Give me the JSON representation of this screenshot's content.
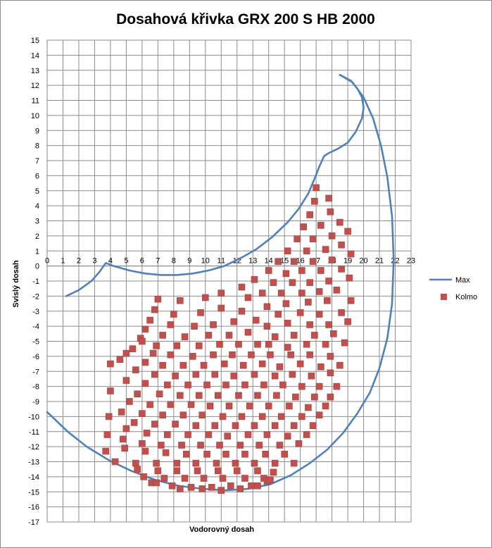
{
  "chart_data": {
    "type": "scatter",
    "title": "Dosahová křivka GRX 200 S HB 2000",
    "xlabel": "Vodorovný dosah",
    "ylabel": "Svislý dosah",
    "xlim": [
      0,
      23
    ],
    "ylim": [
      -17,
      15
    ],
    "grid": true,
    "legend_position": "right",
    "x_ticks": [
      "0",
      "1",
      "2",
      "3",
      "4",
      "5",
      "6",
      "7",
      "8",
      "9",
      "10",
      "11",
      "12",
      "13",
      "14",
      "15",
      "16",
      "17",
      "18",
      "19",
      "20",
      "21",
      "22",
      "23"
    ],
    "y_ticks": [
      "15",
      "14",
      "13",
      "12",
      "11",
      "10",
      "9",
      "8",
      "7",
      "6",
      "5",
      "4",
      "3",
      "2",
      "1",
      "0",
      "-1",
      "-2",
      "-3",
      "-4",
      "-5",
      "-6",
      "-7",
      "-8",
      "-9",
      "-10",
      "-11",
      "-12",
      "-13",
      "-14",
      "-15",
      "-16",
      "-17"
    ],
    "series": [
      {
        "name": "Max",
        "kind": "line",
        "color": "#4f81bd",
        "x": [
          1.2,
          2.0,
          2.8,
          3.3,
          3.7,
          4.2,
          5.2,
          6.2,
          7.2,
          8.2,
          9.2,
          10.2,
          11.2,
          12.2,
          13.2,
          14.2,
          15.2,
          15.9,
          16.5,
          16.9,
          17.2,
          17.5,
          17.8,
          18.4,
          19.0,
          19.5,
          19.9,
          20.0,
          19.9,
          19.6,
          19.2,
          18.5,
          19.3,
          20.0,
          20.6,
          21.1,
          21.5,
          21.8,
          21.9,
          21.8,
          21.5,
          21.0,
          20.4,
          19.6,
          18.7,
          17.7,
          16.6,
          15.4,
          14.1,
          12.7,
          11.3,
          9.8,
          8.3,
          6.8,
          5.3,
          3.9,
          2.5,
          1.3,
          0.4,
          0.0
        ],
        "y": [
          -2.0,
          -1.6,
          -1.0,
          -0.4,
          0.2,
          0.0,
          -0.3,
          -0.5,
          -0.6,
          -0.6,
          -0.5,
          -0.3,
          0.0,
          0.5,
          1.1,
          1.9,
          2.9,
          3.8,
          4.8,
          5.8,
          6.6,
          7.3,
          7.5,
          7.8,
          8.2,
          8.9,
          9.8,
          10.5,
          11.2,
          11.8,
          12.3,
          12.7,
          12.2,
          11.2,
          9.8,
          8.0,
          5.9,
          3.3,
          0.4,
          -2.5,
          -4.8,
          -6.8,
          -8.4,
          -9.8,
          -11.1,
          -12.2,
          -13.1,
          -13.9,
          -14.5,
          -14.8,
          -14.9,
          -14.8,
          -14.6,
          -14.2,
          -13.6,
          -12.9,
          -12.0,
          -11.0,
          -10.1,
          -9.7
        ]
      },
      {
        "name": "Kolmo",
        "kind": "scatter",
        "color": "#c0504d",
        "points": [
          [
            17.0,
            5.2
          ],
          [
            17.8,
            4.5
          ],
          [
            16.9,
            4.3
          ],
          [
            16.6,
            3.4
          ],
          [
            17.9,
            3.6
          ],
          [
            16.2,
            2.6
          ],
          [
            17.3,
            2.7
          ],
          [
            18.5,
            2.9
          ],
          [
            15.8,
            1.8
          ],
          [
            16.8,
            1.8
          ],
          [
            18.0,
            2.0
          ],
          [
            19.0,
            2.3
          ],
          [
            15.2,
            1.0
          ],
          [
            16.4,
            1.0
          ],
          [
            17.6,
            1.1
          ],
          [
            18.6,
            1.4
          ],
          [
            14.6,
            0.3
          ],
          [
            15.6,
            0.3
          ],
          [
            16.8,
            0.3
          ],
          [
            18.0,
            0.4
          ],
          [
            19.2,
            0.8
          ],
          [
            14.0,
            -0.3
          ],
          [
            15.1,
            -0.5
          ],
          [
            16.1,
            -0.3
          ],
          [
            17.3,
            -0.3
          ],
          [
            18.6,
            -0.2
          ],
          [
            13.1,
            -0.9
          ],
          [
            14.3,
            -1.1
          ],
          [
            15.5,
            -1.1
          ],
          [
            16.6,
            -1.1
          ],
          [
            17.8,
            -1.0
          ],
          [
            19.1,
            -0.8
          ],
          [
            12.3,
            -1.4
          ],
          [
            13.6,
            -1.8
          ],
          [
            14.8,
            -1.8
          ],
          [
            16.1,
            -1.8
          ],
          [
            17.2,
            -1.7
          ],
          [
            18.3,
            -1.6
          ],
          [
            11.0,
            -1.8
          ],
          [
            12.7,
            -2.1
          ],
          [
            13.9,
            -2.7
          ],
          [
            15.1,
            -2.5
          ],
          [
            16.5,
            -2.4
          ],
          [
            17.7,
            -2.3
          ],
          [
            19.2,
            -2.3
          ],
          [
            7.0,
            -2.2
          ],
          [
            8.4,
            -2.3
          ],
          [
            10.0,
            -2.1
          ],
          [
            6.8,
            -2.9
          ],
          [
            8.0,
            -3.2
          ],
          [
            9.7,
            -3.1
          ],
          [
            11.0,
            -2.8
          ],
          [
            12.3,
            -3.0
          ],
          [
            14.6,
            -3.2
          ],
          [
            16.0,
            -3.1
          ],
          [
            17.2,
            -3.2
          ],
          [
            18.6,
            -3.1
          ],
          [
            6.5,
            -3.6
          ],
          [
            7.8,
            -3.9
          ],
          [
            9.3,
            -4.0
          ],
          [
            10.5,
            -3.9
          ],
          [
            11.8,
            -3.7
          ],
          [
            13.2,
            -3.6
          ],
          [
            13.9,
            -4.0
          ],
          [
            15.2,
            -3.8
          ],
          [
            16.6,
            -3.9
          ],
          [
            17.8,
            -3.9
          ],
          [
            19.0,
            -3.7
          ],
          [
            6.2,
            -4.2
          ],
          [
            7.3,
            -4.6
          ],
          [
            8.7,
            -4.7
          ],
          [
            10.2,
            -4.6
          ],
          [
            11.5,
            -4.6
          ],
          [
            12.7,
            -4.4
          ],
          [
            14.4,
            -4.7
          ],
          [
            15.6,
            -4.6
          ],
          [
            16.9,
            -4.6
          ],
          [
            18.1,
            -4.5
          ],
          [
            5.9,
            -4.8
          ],
          [
            6.0,
            -5.0
          ],
          [
            6.9,
            -5.3
          ],
          [
            8.2,
            -5.3
          ],
          [
            9.6,
            -5.3
          ],
          [
            10.9,
            -5.2
          ],
          [
            12.1,
            -5.2
          ],
          [
            13.3,
            -5.2
          ],
          [
            14.0,
            -5.2
          ],
          [
            15.2,
            -5.4
          ],
          [
            16.4,
            -5.2
          ],
          [
            17.6,
            -5.2
          ],
          [
            18.8,
            -5.1
          ],
          [
            5.4,
            -5.5
          ],
          [
            5.0,
            -5.8
          ],
          [
            6.7,
            -5.8
          ],
          [
            7.8,
            -5.9
          ],
          [
            9.2,
            -6.0
          ],
          [
            10.5,
            -5.9
          ],
          [
            11.7,
            -5.9
          ],
          [
            12.9,
            -5.9
          ],
          [
            14.1,
            -5.9
          ],
          [
            15.4,
            -5.9
          ],
          [
            16.6,
            -5.9
          ],
          [
            17.9,
            -6.0
          ],
          [
            4.6,
            -6.2
          ],
          [
            4.0,
            -6.5
          ],
          [
            6.2,
            -6.4
          ],
          [
            7.3,
            -6.6
          ],
          [
            8.6,
            -6.6
          ],
          [
            9.9,
            -6.6
          ],
          [
            11.2,
            -6.5
          ],
          [
            12.4,
            -6.6
          ],
          [
            13.6,
            -6.5
          ],
          [
            14.7,
            -6.7
          ],
          [
            16.0,
            -6.5
          ],
          [
            17.3,
            -6.7
          ],
          [
            18.5,
            -6.6
          ],
          [
            5.6,
            -6.9
          ],
          [
            6.8,
            -7.2
          ],
          [
            8.1,
            -7.3
          ],
          [
            9.4,
            -7.2
          ],
          [
            10.6,
            -7.2
          ],
          [
            11.8,
            -7.3
          ],
          [
            13.1,
            -7.2
          ],
          [
            14.4,
            -7.3
          ],
          [
            15.5,
            -7.2
          ],
          [
            16.7,
            -7.3
          ],
          [
            17.9,
            -7.1
          ],
          [
            5.0,
            -7.6
          ],
          [
            6.2,
            -7.8
          ],
          [
            7.6,
            -7.9
          ],
          [
            8.9,
            -7.9
          ],
          [
            10.1,
            -7.9
          ],
          [
            11.3,
            -7.9
          ],
          [
            12.5,
            -7.9
          ],
          [
            13.7,
            -7.9
          ],
          [
            14.9,
            -7.9
          ],
          [
            16.1,
            -8.0
          ],
          [
            17.2,
            -8.0
          ],
          [
            18.3,
            -8.0
          ],
          [
            4.0,
            -8.3
          ],
          [
            5.7,
            -8.5
          ],
          [
            7.1,
            -8.5
          ],
          [
            8.4,
            -8.6
          ],
          [
            9.6,
            -8.6
          ],
          [
            10.8,
            -8.6
          ],
          [
            12.1,
            -8.6
          ],
          [
            13.3,
            -8.6
          ],
          [
            14.5,
            -8.6
          ],
          [
            15.7,
            -8.7
          ],
          [
            16.9,
            -8.7
          ],
          [
            17.9,
            -8.7
          ],
          [
            5.2,
            -9.0
          ],
          [
            6.5,
            -9.2
          ],
          [
            7.8,
            -9.2
          ],
          [
            9.1,
            -9.2
          ],
          [
            10.3,
            -9.3
          ],
          [
            11.5,
            -9.3
          ],
          [
            12.8,
            -9.3
          ],
          [
            14.0,
            -9.3
          ],
          [
            15.3,
            -9.3
          ],
          [
            16.5,
            -9.4
          ],
          [
            17.6,
            -9.3
          ],
          [
            4.7,
            -9.7
          ],
          [
            6.0,
            -9.8
          ],
          [
            7.3,
            -9.9
          ],
          [
            8.6,
            -9.9
          ],
          [
            9.8,
            -9.9
          ],
          [
            11.1,
            -10.0
          ],
          [
            12.3,
            -10.0
          ],
          [
            13.6,
            -10.0
          ],
          [
            14.8,
            -10.0
          ],
          [
            16.1,
            -10.0
          ],
          [
            17.2,
            -9.9
          ],
          [
            3.9,
            -10.0
          ],
          [
            5.5,
            -10.4
          ],
          [
            6.8,
            -10.5
          ],
          [
            8.1,
            -10.5
          ],
          [
            9.4,
            -10.6
          ],
          [
            10.6,
            -10.6
          ],
          [
            11.9,
            -10.6
          ],
          [
            13.1,
            -10.6
          ],
          [
            14.4,
            -10.6
          ],
          [
            15.6,
            -10.6
          ],
          [
            16.8,
            -10.6
          ],
          [
            5.0,
            -10.8
          ],
          [
            6.3,
            -11.1
          ],
          [
            7.6,
            -11.2
          ],
          [
            8.9,
            -11.2
          ],
          [
            10.2,
            -11.2
          ],
          [
            11.4,
            -11.3
          ],
          [
            12.7,
            -11.2
          ],
          [
            13.9,
            -11.2
          ],
          [
            15.2,
            -11.3
          ],
          [
            16.4,
            -11.2
          ],
          [
            3.8,
            -11.2
          ],
          [
            4.8,
            -11.5
          ],
          [
            6.0,
            -11.8
          ],
          [
            7.2,
            -11.9
          ],
          [
            8.5,
            -11.9
          ],
          [
            9.7,
            -11.9
          ],
          [
            10.9,
            -11.9
          ],
          [
            12.2,
            -11.9
          ],
          [
            13.4,
            -11.9
          ],
          [
            14.7,
            -11.9
          ],
          [
            15.9,
            -11.8
          ],
          [
            4.9,
            -12.1
          ],
          [
            6.2,
            -12.3
          ],
          [
            7.5,
            -12.4
          ],
          [
            8.8,
            -12.5
          ],
          [
            10.1,
            -12.5
          ],
          [
            11.3,
            -12.5
          ],
          [
            12.5,
            -12.5
          ],
          [
            13.8,
            -12.5
          ],
          [
            15.0,
            -12.5
          ],
          [
            3.7,
            -12.3
          ],
          [
            4.3,
            -13.0
          ],
          [
            5.6,
            -13.1
          ],
          [
            6.9,
            -13.1
          ],
          [
            8.2,
            -13.1
          ],
          [
            9.4,
            -13.1
          ],
          [
            10.7,
            -13.1
          ],
          [
            11.9,
            -13.1
          ],
          [
            13.1,
            -13.1
          ],
          [
            14.4,
            -13.1
          ],
          [
            15.6,
            -13.1
          ],
          [
            5.7,
            -13.5
          ],
          [
            7.0,
            -13.6
          ],
          [
            8.2,
            -13.6
          ],
          [
            9.5,
            -13.6
          ],
          [
            10.8,
            -13.6
          ],
          [
            12.0,
            -13.6
          ],
          [
            13.3,
            -13.6
          ],
          [
            14.3,
            -13.7
          ],
          [
            6.1,
            -14.0
          ],
          [
            7.4,
            -14.1
          ],
          [
            8.7,
            -14.1
          ],
          [
            9.9,
            -14.1
          ],
          [
            11.1,
            -14.1
          ],
          [
            12.5,
            -14.1
          ],
          [
            13.7,
            -14.1
          ],
          [
            6.6,
            -14.4
          ],
          [
            7.9,
            -14.6
          ],
          [
            9.1,
            -14.7
          ],
          [
            10.4,
            -14.7
          ],
          [
            11.6,
            -14.6
          ],
          [
            12.9,
            -14.6
          ],
          [
            13.9,
            -14.3
          ],
          [
            6.9,
            -14.4
          ],
          [
            8.4,
            -14.8
          ],
          [
            9.8,
            -14.8
          ],
          [
            11.0,
            -14.9
          ],
          [
            12.2,
            -14.8
          ],
          [
            13.3,
            -14.6
          ],
          [
            14.1,
            -14.2
          ]
        ]
      }
    ]
  }
}
